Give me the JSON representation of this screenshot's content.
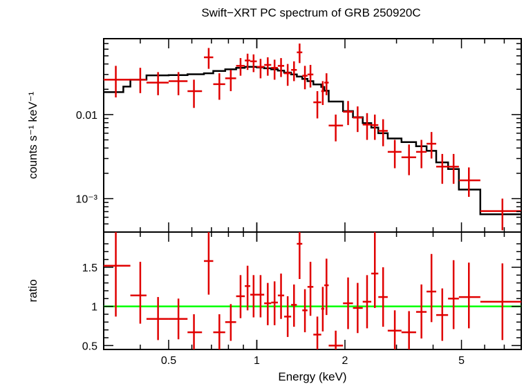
{
  "chart_data": [
    {
      "type": "scatter",
      "title": "Swift−XRT PC spectrum of GRB 250920C",
      "ylabel": "counts s⁻¹ keV⁻¹",
      "xscale": "log",
      "yscale": "log",
      "xlim": [
        0.3,
        8.0
      ],
      "ylim": [
        0.0004,
        0.08
      ],
      "y_tick_labels": [
        {
          "value": 0.01,
          "label": "0.01"
        },
        {
          "value": 0.001,
          "label": "10⁻³"
        }
      ],
      "series": [
        {
          "kind": "data",
          "color": "#e00000",
          "points": [
            {
              "x": 0.33,
              "x_lo": 0.3,
              "x_hi": 0.37,
              "y": 0.026,
              "y_lo": 0.016,
              "y_hi": 0.038
            },
            {
              "x": 0.4,
              "x_lo": 0.37,
              "x_hi": 0.42,
              "y": 0.026,
              "y_lo": 0.018,
              "y_hi": 0.036
            },
            {
              "x": 0.46,
              "x_lo": 0.42,
              "x_hi": 0.5,
              "y": 0.024,
              "y_lo": 0.017,
              "y_hi": 0.032
            },
            {
              "x": 0.54,
              "x_lo": 0.5,
              "x_hi": 0.58,
              "y": 0.025,
              "y_lo": 0.017,
              "y_hi": 0.032
            },
            {
              "x": 0.61,
              "x_lo": 0.58,
              "x_hi": 0.65,
              "y": 0.019,
              "y_lo": 0.012,
              "y_hi": 0.026
            },
            {
              "x": 0.685,
              "x_lo": 0.66,
              "x_hi": 0.71,
              "y": 0.048,
              "y_lo": 0.035,
              "y_hi": 0.062
            },
            {
              "x": 0.745,
              "x_lo": 0.71,
              "x_hi": 0.78,
              "y": 0.023,
              "y_lo": 0.015,
              "y_hi": 0.031
            },
            {
              "x": 0.815,
              "x_lo": 0.78,
              "x_hi": 0.85,
              "y": 0.027,
              "y_lo": 0.019,
              "y_hi": 0.034
            },
            {
              "x": 0.88,
              "x_lo": 0.85,
              "x_hi": 0.91,
              "y": 0.038,
              "y_lo": 0.029,
              "y_hi": 0.047
            },
            {
              "x": 0.93,
              "x_lo": 0.91,
              "x_hi": 0.95,
              "y": 0.044,
              "y_lo": 0.034,
              "y_hi": 0.053
            },
            {
              "x": 0.975,
              "x_lo": 0.95,
              "x_hi": 1.0,
              "y": 0.043,
              "y_lo": 0.032,
              "y_hi": 0.052
            },
            {
              "x": 1.03,
              "x_lo": 1.0,
              "x_hi": 1.06,
              "y": 0.037,
              "y_lo": 0.027,
              "y_hi": 0.046
            },
            {
              "x": 1.09,
              "x_lo": 1.06,
              "x_hi": 1.12,
              "y": 0.039,
              "y_lo": 0.029,
              "y_hi": 0.048
            },
            {
              "x": 1.15,
              "x_lo": 1.12,
              "x_hi": 1.18,
              "y": 0.036,
              "y_lo": 0.026,
              "y_hi": 0.045
            },
            {
              "x": 1.21,
              "x_lo": 1.18,
              "x_hi": 1.24,
              "y": 0.038,
              "y_lo": 0.028,
              "y_hi": 0.047
            },
            {
              "x": 1.275,
              "x_lo": 1.24,
              "x_hi": 1.31,
              "y": 0.031,
              "y_lo": 0.022,
              "y_hi": 0.04
            },
            {
              "x": 1.34,
              "x_lo": 1.31,
              "x_hi": 1.37,
              "y": 0.034,
              "y_lo": 0.025,
              "y_hi": 0.043
            },
            {
              "x": 1.4,
              "x_lo": 1.37,
              "x_hi": 1.43,
              "y": 0.055,
              "y_lo": 0.041,
              "y_hi": 0.07
            },
            {
              "x": 1.46,
              "x_lo": 1.43,
              "x_hi": 1.49,
              "y": 0.029,
              "y_lo": 0.02,
              "y_hi": 0.038
            },
            {
              "x": 1.525,
              "x_lo": 1.49,
              "x_hi": 1.56,
              "y": 0.03,
              "y_lo": 0.021,
              "y_hi": 0.039
            },
            {
              "x": 1.61,
              "x_lo": 1.56,
              "x_hi": 1.66,
              "y": 0.014,
              "y_lo": 0.009,
              "y_hi": 0.019
            },
            {
              "x": 1.68,
              "x_lo": 1.66,
              "x_hi": 1.7,
              "y": 0.019,
              "y_lo": 0.013,
              "y_hi": 0.025
            },
            {
              "x": 1.73,
              "x_lo": 1.7,
              "x_hi": 1.76,
              "y": 0.024,
              "y_lo": 0.017,
              "y_hi": 0.031
            },
            {
              "x": 1.86,
              "x_lo": 1.76,
              "x_hi": 1.97,
              "y": 0.0074,
              "y_lo": 0.0048,
              "y_hi": 0.01
            },
            {
              "x": 2.05,
              "x_lo": 1.97,
              "x_hi": 2.13,
              "y": 0.0108,
              "y_lo": 0.0075,
              "y_hi": 0.0145
            },
            {
              "x": 2.21,
              "x_lo": 2.13,
              "x_hi": 2.3,
              "y": 0.0092,
              "y_lo": 0.0062,
              "y_hi": 0.0125
            },
            {
              "x": 2.38,
              "x_lo": 2.3,
              "x_hi": 2.46,
              "y": 0.0076,
              "y_lo": 0.005,
              "y_hi": 0.0104
            },
            {
              "x": 2.53,
              "x_lo": 2.46,
              "x_hi": 2.6,
              "y": 0.0075,
              "y_lo": 0.005,
              "y_hi": 0.01
            },
            {
              "x": 2.7,
              "x_lo": 2.6,
              "x_hi": 2.8,
              "y": 0.0064,
              "y_lo": 0.0042,
              "y_hi": 0.0088
            },
            {
              "x": 2.96,
              "x_lo": 2.8,
              "x_hi": 3.12,
              "y": 0.0036,
              "y_lo": 0.0023,
              "y_hi": 0.005
            },
            {
              "x": 3.31,
              "x_lo": 3.12,
              "x_hi": 3.5,
              "y": 0.0031,
              "y_lo": 0.0019,
              "y_hi": 0.0044
            },
            {
              "x": 3.65,
              "x_lo": 3.5,
              "x_hi": 3.8,
              "y": 0.0036,
              "y_lo": 0.0023,
              "y_hi": 0.005
            },
            {
              "x": 3.95,
              "x_lo": 3.8,
              "x_hi": 4.1,
              "y": 0.0045,
              "y_lo": 0.003,
              "y_hi": 0.0062
            },
            {
              "x": 4.3,
              "x_lo": 4.1,
              "x_hi": 4.5,
              "y": 0.0024,
              "y_lo": 0.0015,
              "y_hi": 0.0034
            },
            {
              "x": 4.7,
              "x_lo": 4.5,
              "x_hi": 4.9,
              "y": 0.0024,
              "y_lo": 0.0015,
              "y_hi": 0.0034
            },
            {
              "x": 5.3,
              "x_lo": 4.9,
              "x_hi": 5.8,
              "y": 0.00165,
              "y_lo": 0.00105,
              "y_hi": 0.00235
            },
            {
              "x": 6.9,
              "x_lo": 5.8,
              "x_hi": 8.0,
              "y": 0.00071,
              "y_lo": 0.00042,
              "y_hi": 0.001
            }
          ]
        },
        {
          "kind": "model",
          "color": "#000000",
          "steps": [
            {
              "x0": 0.3,
              "x1": 0.35,
              "y": 0.0185
            },
            {
              "x0": 0.35,
              "x1": 0.37,
              "y": 0.0215
            },
            {
              "x0": 0.37,
              "x1": 0.42,
              "y": 0.026
            },
            {
              "x0": 0.42,
              "x1": 0.5,
              "y": 0.0293
            },
            {
              "x0": 0.5,
              "x1": 0.58,
              "y": 0.0295
            },
            {
              "x0": 0.58,
              "x1": 0.66,
              "y": 0.0302
            },
            {
              "x0": 0.66,
              "x1": 0.71,
              "y": 0.031
            },
            {
              "x0": 0.71,
              "x1": 0.78,
              "y": 0.033
            },
            {
              "x0": 0.78,
              "x1": 0.85,
              "y": 0.0345
            },
            {
              "x0": 0.85,
              "x1": 0.91,
              "y": 0.036
            },
            {
              "x0": 0.91,
              "x1": 1.0,
              "y": 0.037
            },
            {
              "x0": 1.0,
              "x1": 1.06,
              "y": 0.0364
            },
            {
              "x0": 1.06,
              "x1": 1.12,
              "y": 0.0355
            },
            {
              "x0": 1.12,
              "x1": 1.18,
              "y": 0.0345
            },
            {
              "x0": 1.18,
              "x1": 1.24,
              "y": 0.0333
            },
            {
              "x0": 1.24,
              "x1": 1.31,
              "y": 0.0316
            },
            {
              "x0": 1.31,
              "x1": 1.37,
              "y": 0.03
            },
            {
              "x0": 1.37,
              "x1": 1.43,
              "y": 0.0283
            },
            {
              "x0": 1.43,
              "x1": 1.49,
              "y": 0.0266
            },
            {
              "x0": 1.49,
              "x1": 1.56,
              "y": 0.025
            },
            {
              "x0": 1.56,
              "x1": 1.66,
              "y": 0.0228
            },
            {
              "x0": 1.66,
              "x1": 1.7,
              "y": 0.0213
            },
            {
              "x0": 1.7,
              "x1": 1.76,
              "y": 0.0192
            },
            {
              "x0": 1.76,
              "x1": 1.97,
              "y": 0.0143
            },
            {
              "x0": 1.97,
              "x1": 2.13,
              "y": 0.011
            },
            {
              "x0": 2.13,
              "x1": 2.3,
              "y": 0.0093
            },
            {
              "x0": 2.3,
              "x1": 2.46,
              "y": 0.0079
            },
            {
              "x0": 2.46,
              "x1": 2.6,
              "y": 0.007
            },
            {
              "x0": 2.6,
              "x1": 2.8,
              "y": 0.006
            },
            {
              "x0": 2.8,
              "x1": 3.12,
              "y": 0.0052
            },
            {
              "x0": 3.12,
              "x1": 3.5,
              "y": 0.0047
            },
            {
              "x0": 3.5,
              "x1": 3.8,
              "y": 0.0042
            },
            {
              "x0": 3.8,
              "x1": 4.1,
              "y": 0.0037
            },
            {
              "x0": 4.1,
              "x1": 4.5,
              "y": 0.0027
            },
            {
              "x0": 4.5,
              "x1": 4.9,
              "y": 0.00225
            },
            {
              "x0": 4.9,
              "x1": 5.8,
              "y": 0.00128
            },
            {
              "x0": 5.8,
              "x1": 8.0,
              "y": 0.00065
            }
          ]
        }
      ]
    },
    {
      "type": "scatter",
      "xlabel": "Energy (keV)",
      "ylabel": "ratio",
      "xscale": "log",
      "xlim": [
        0.3,
        8.0
      ],
      "ylim": [
        0.45,
        1.95
      ],
      "x_tick_labels": [
        {
          "value": 0.5,
          "label": "0.5"
        },
        {
          "value": 1,
          "label": "1"
        },
        {
          "value": 2,
          "label": "2"
        },
        {
          "value": 5,
          "label": "5"
        }
      ],
      "y_tick_labels": [
        {
          "value": 0.5,
          "label": "0.5"
        },
        {
          "value": 1,
          "label": "1"
        },
        {
          "value": 1.5,
          "label": "1.5"
        }
      ],
      "reference_line": {
        "y": 1.0,
        "color": "#00ff00"
      },
      "series": [
        {
          "kind": "data",
          "color": "#e00000",
          "points": [
            {
              "x": 0.33,
              "x_lo": 0.3,
              "x_hi": 0.37,
              "y": 1.52,
              "y_lo": 0.87,
              "y_hi": 1.95
            },
            {
              "x": 0.4,
              "x_lo": 0.37,
              "x_hi": 0.42,
              "y": 1.14,
              "y_lo": 0.78,
              "y_hi": 1.57
            },
            {
              "x": 0.46,
              "x_lo": 0.42,
              "x_hi": 0.5,
              "y": 0.84,
              "y_lo": 0.57,
              "y_hi": 1.12
            },
            {
              "x": 0.54,
              "x_lo": 0.5,
              "x_hi": 0.58,
              "y": 0.84,
              "y_lo": 0.58,
              "y_hi": 1.1
            },
            {
              "x": 0.61,
              "x_lo": 0.58,
              "x_hi": 0.65,
              "y": 0.67,
              "y_lo": 0.45,
              "y_hi": 0.9
            },
            {
              "x": 0.685,
              "x_lo": 0.66,
              "x_hi": 0.71,
              "y": 1.58,
              "y_lo": 1.15,
              "y_hi": 1.95
            },
            {
              "x": 0.745,
              "x_lo": 0.71,
              "x_hi": 0.78,
              "y": 0.67,
              "y_lo": 0.45,
              "y_hi": 0.9
            },
            {
              "x": 0.815,
              "x_lo": 0.78,
              "x_hi": 0.85,
              "y": 0.8,
              "y_lo": 0.56,
              "y_hi": 1.03
            },
            {
              "x": 0.88,
              "x_lo": 0.85,
              "x_hi": 0.91,
              "y": 1.13,
              "y_lo": 0.85,
              "y_hi": 1.4
            },
            {
              "x": 0.93,
              "x_lo": 0.91,
              "x_hi": 0.95,
              "y": 1.26,
              "y_lo": 0.95,
              "y_hi": 1.52
            },
            {
              "x": 0.975,
              "x_lo": 0.95,
              "x_hi": 1.0,
              "y": 1.15,
              "y_lo": 0.86,
              "y_hi": 1.4
            },
            {
              "x": 1.03,
              "x_lo": 1.0,
              "x_hi": 1.06,
              "y": 1.15,
              "y_lo": 0.86,
              "y_hi": 1.4
            },
            {
              "x": 1.09,
              "x_lo": 1.06,
              "x_hi": 1.12,
              "y": 1.04,
              "y_lo": 0.76,
              "y_hi": 1.3
            },
            {
              "x": 1.15,
              "x_lo": 1.12,
              "x_hi": 1.18,
              "y": 1.05,
              "y_lo": 0.76,
              "y_hi": 1.32
            },
            {
              "x": 1.21,
              "x_lo": 1.18,
              "x_hi": 1.24,
              "y": 1.14,
              "y_lo": 0.84,
              "y_hi": 1.42
            },
            {
              "x": 1.275,
              "x_lo": 1.24,
              "x_hi": 1.31,
              "y": 0.87,
              "y_lo": 0.61,
              "y_hi": 1.13
            },
            {
              "x": 1.34,
              "x_lo": 1.31,
              "x_hi": 1.37,
              "y": 1.02,
              "y_lo": 0.74,
              "y_hi": 1.28
            },
            {
              "x": 1.4,
              "x_lo": 1.37,
              "x_hi": 1.43,
              "y": 1.8,
              "y_lo": 1.35,
              "y_hi": 2.0
            },
            {
              "x": 1.46,
              "x_lo": 1.43,
              "x_hi": 1.49,
              "y": 0.95,
              "y_lo": 0.67,
              "y_hi": 1.22
            },
            {
              "x": 1.525,
              "x_lo": 1.49,
              "x_hi": 1.56,
              "y": 1.25,
              "y_lo": 0.88,
              "y_hi": 1.57
            },
            {
              "x": 1.61,
              "x_lo": 1.56,
              "x_hi": 1.66,
              "y": 0.64,
              "y_lo": 0.42,
              "y_hi": 0.87
            },
            {
              "x": 1.68,
              "x_lo": 1.66,
              "x_hi": 1.7,
              "y": 0.97,
              "y_lo": 0.68,
              "y_hi": 1.25
            },
            {
              "x": 1.73,
              "x_lo": 1.7,
              "x_hi": 1.76,
              "y": 1.27,
              "y_lo": 0.89,
              "y_hi": 1.61
            },
            {
              "x": 1.86,
              "x_lo": 1.76,
              "x_hi": 1.97,
              "y": 0.5,
              "y_lo": 0.33,
              "y_hi": 0.69
            },
            {
              "x": 2.05,
              "x_lo": 1.97,
              "x_hi": 2.13,
              "y": 1.04,
              "y_lo": 0.71,
              "y_hi": 1.37
            },
            {
              "x": 2.21,
              "x_lo": 2.13,
              "x_hi": 2.3,
              "y": 0.98,
              "y_lo": 0.66,
              "y_hi": 1.3
            },
            {
              "x": 2.38,
              "x_lo": 2.3,
              "x_hi": 2.46,
              "y": 1.06,
              "y_lo": 0.72,
              "y_hi": 1.4
            },
            {
              "x": 2.53,
              "x_lo": 2.46,
              "x_hi": 2.6,
              "y": 1.42,
              "y_lo": 0.98,
              "y_hi": 1.95
            },
            {
              "x": 2.7,
              "x_lo": 2.6,
              "x_hi": 2.8,
              "y": 1.12,
              "y_lo": 0.74,
              "y_hi": 1.5
            },
            {
              "x": 2.96,
              "x_lo": 2.8,
              "x_hi": 3.12,
              "y": 0.69,
              "y_lo": 0.44,
              "y_hi": 0.95
            },
            {
              "x": 3.31,
              "x_lo": 3.12,
              "x_hi": 3.5,
              "y": 0.67,
              "y_lo": 0.42,
              "y_hi": 0.94
            },
            {
              "x": 3.65,
              "x_lo": 3.5,
              "x_hi": 3.8,
              "y": 0.93,
              "y_lo": 0.59,
              "y_hi": 1.28
            },
            {
              "x": 3.95,
              "x_lo": 3.8,
              "x_hi": 4.1,
              "y": 1.19,
              "y_lo": 0.8,
              "y_hi": 1.67
            },
            {
              "x": 4.3,
              "x_lo": 4.1,
              "x_hi": 4.5,
              "y": 0.89,
              "y_lo": 0.56,
              "y_hi": 1.23
            },
            {
              "x": 4.7,
              "x_lo": 4.5,
              "x_hi": 4.9,
              "y": 1.1,
              "y_lo": 0.71,
              "y_hi": 1.59
            },
            {
              "x": 5.3,
              "x_lo": 4.9,
              "x_hi": 5.8,
              "y": 1.12,
              "y_lo": 0.72,
              "y_hi": 1.56
            },
            {
              "x": 6.9,
              "x_lo": 5.8,
              "x_hi": 8.0,
              "y": 1.06,
              "y_lo": 0.57,
              "y_hi": 1.55
            }
          ]
        }
      ]
    }
  ]
}
